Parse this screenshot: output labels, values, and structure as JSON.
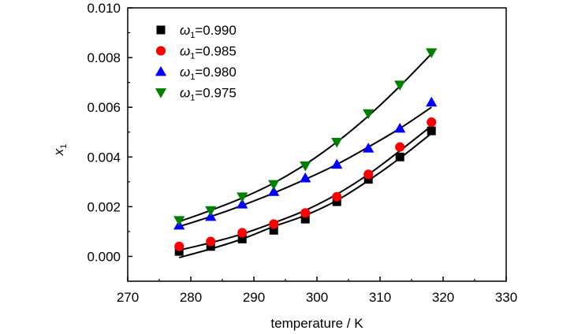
{
  "chart_data": {
    "type": "scatter",
    "title": "",
    "xlabel": "temperature / K",
    "ylabel": "x",
    "ylabel_sub": "1",
    "xlim": [
      270,
      330
    ],
    "ylim": [
      -0.001,
      0.01
    ],
    "xticks": [
      270,
      280,
      290,
      300,
      310,
      320,
      330
    ],
    "yticks": [
      0.0,
      0.002,
      0.004,
      0.006,
      0.008,
      0.01
    ],
    "ytick_labels": [
      "0.000",
      "0.002",
      "0.004",
      "0.006",
      "0.008",
      "0.010"
    ],
    "grid": false,
    "legend_position": "top-left",
    "x": [
      278.15,
      283.15,
      288.15,
      293.15,
      298.15,
      303.15,
      308.15,
      313.15,
      318.15
    ],
    "series": [
      {
        "name_symbol": "ω",
        "name_sub": "1",
        "name_value": "=0.990",
        "marker": "square",
        "color": "#000000",
        "values": [
          0.0002,
          0.0004,
          0.0007,
          0.00105,
          0.0015,
          0.0022,
          0.0031,
          0.004,
          0.00505
        ],
        "fit": [
          -5e-05,
          0.0003,
          0.0007,
          0.0012,
          0.00165,
          0.00225,
          0.00305,
          0.00395,
          0.00495
        ]
      },
      {
        "name_symbol": "ω",
        "name_sub": "1",
        "name_value": "=0.985",
        "marker": "circle",
        "color": "#ff0000",
        "values": [
          0.0004,
          0.0006,
          0.00095,
          0.0013,
          0.00175,
          0.0024,
          0.0033,
          0.0044,
          0.0054
        ],
        "fit": [
          0.00025,
          0.00055,
          0.0009,
          0.00135,
          0.00185,
          0.0025,
          0.0033,
          0.00425,
          0.00525
        ]
      },
      {
        "name_symbol": "ω",
        "name_sub": "1",
        "name_value": "=0.980",
        "marker": "triangle-up",
        "color": "#0000ff",
        "values": [
          0.00125,
          0.0016,
          0.0021,
          0.0026,
          0.00315,
          0.0037,
          0.00435,
          0.00515,
          0.0062
        ],
        "fit": [
          0.0012,
          0.0016,
          0.00205,
          0.00255,
          0.0031,
          0.0037,
          0.0044,
          0.00515,
          0.006
        ]
      },
      {
        "name_symbol": "ω",
        "name_sub": "1",
        "name_value": "=0.975",
        "marker": "triangle-down",
        "color": "#008000",
        "values": [
          0.00145,
          0.00185,
          0.0024,
          0.0029,
          0.00365,
          0.0046,
          0.00575,
          0.0069,
          0.0082
        ],
        "fit": [
          0.0014,
          0.00185,
          0.00235,
          0.00295,
          0.0037,
          0.0046,
          0.00565,
          0.00685,
          0.00815
        ]
      }
    ]
  }
}
